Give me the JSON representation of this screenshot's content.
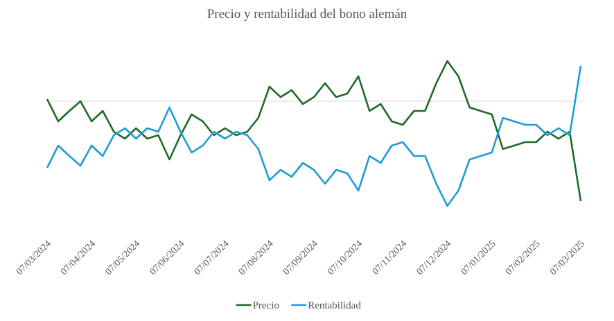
{
  "chart_data": {
    "type": "line",
    "title": "Precio y rentabilidad del bono alemán",
    "categories": [
      "07/03/2024",
      null,
      null,
      null,
      "07/04/2024",
      null,
      null,
      null,
      "07/05/2024",
      null,
      null,
      null,
      "07/06/2024",
      null,
      null,
      null,
      "07/07/2024",
      null,
      null,
      null,
      "07/08/2024",
      null,
      null,
      null,
      "07/09/2024",
      null,
      null,
      null,
      "07/10/2024",
      null,
      null,
      null,
      "07/11/2024",
      null,
      null,
      null,
      "07/12/2024",
      null,
      null,
      null,
      "07/01/2025",
      null,
      null,
      null,
      "07/02/2025",
      null,
      null,
      null,
      "07/03/2025"
    ],
    "series": [
      {
        "name": "Precio",
        "color": "#1e6b26",
        "values": [
          3,
          -29,
          -14,
          0,
          -29,
          -14,
          -44,
          -54,
          -39,
          -54,
          -49,
          -84,
          -49,
          -19,
          -29,
          -49,
          -39,
          -49,
          -44,
          -24,
          21,
          6,
          16,
          -4,
          6,
          26,
          6,
          11,
          36,
          -14,
          -4,
          -29,
          -34,
          -14,
          -14,
          26,
          58,
          36,
          -9,
          -14,
          -19,
          -69,
          -64,
          -59,
          -59,
          -44,
          -54,
          -44,
          -144
        ]
      },
      {
        "name": "Rentabilidad",
        "color": "#1e9bd7",
        "values": [
          -96,
          -64,
          -79,
          -93,
          -64,
          -79,
          -49,
          -39,
          -54,
          -39,
          -44,
          -9,
          -44,
          -74,
          -64,
          -44,
          -54,
          -44,
          -49,
          -69,
          -114,
          -99,
          -109,
          -89,
          -99,
          -119,
          -99,
          -104,
          -129,
          -79,
          -89,
          -64,
          -59,
          -79,
          -79,
          -119,
          -151,
          -129,
          -84,
          -79,
          -74,
          -24,
          -29,
          -34,
          -34,
          -49,
          -39,
          -49,
          51
        ]
      }
    ],
    "ylim": [
      -160,
      80
    ],
    "legend": "bottom"
  }
}
